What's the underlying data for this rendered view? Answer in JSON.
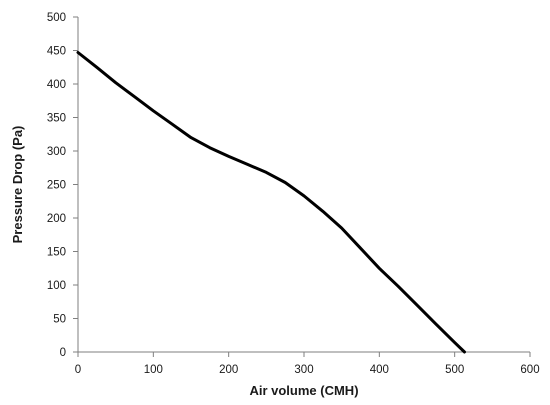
{
  "chart_data": {
    "type": "line",
    "title": "",
    "xlabel": "Air volume (CMH)",
    "ylabel": "Pressure  Drop (Pa)",
    "xlim": [
      0,
      600
    ],
    "ylim": [
      0,
      500
    ],
    "xticks": [
      0,
      100,
      200,
      300,
      400,
      500,
      600
    ],
    "yticks": [
      0,
      50,
      100,
      150,
      200,
      250,
      300,
      350,
      400,
      450,
      500
    ],
    "grid": false,
    "legend": "none",
    "series": [
      {
        "color": "#000000",
        "points": [
          [
            0,
            447
          ],
          [
            25,
            425
          ],
          [
            50,
            402
          ],
          [
            75,
            381
          ],
          [
            100,
            360
          ],
          [
            125,
            340
          ],
          [
            150,
            320
          ],
          [
            175,
            305
          ],
          [
            200,
            292
          ],
          [
            225,
            280
          ],
          [
            250,
            268
          ],
          [
            275,
            253
          ],
          [
            300,
            233
          ],
          [
            325,
            210
          ],
          [
            350,
            185
          ],
          [
            375,
            155
          ],
          [
            400,
            125
          ],
          [
            425,
            98
          ],
          [
            450,
            70
          ],
          [
            475,
            42
          ],
          [
            500,
            14
          ],
          [
            513,
            0
          ]
        ]
      }
    ]
  }
}
